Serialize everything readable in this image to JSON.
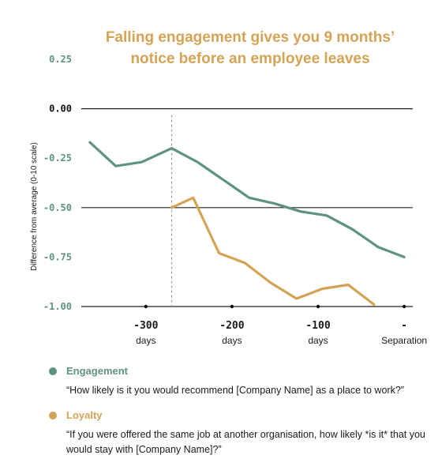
{
  "colors": {
    "engagement": "#5e9283",
    "loyalty": "#d4a355",
    "grid": "#222222",
    "ytick": "#5e9283",
    "separation": "#c47a2e",
    "marker": "#9a9a9a"
  },
  "chart_data": {
    "type": "line",
    "title_lines": [
      "Falling engagement gives you 9 months’",
      "notice before an employee leaves"
    ],
    "ylabel": "Difference from average (0-10 scale)",
    "xlabel": "",
    "xlim": [
      -375,
      10
    ],
    "ylim": [
      -1.0,
      0.25
    ],
    "y_ticks": [
      {
        "value": 0.25,
        "label": "0.25"
      },
      {
        "value": 0.0,
        "label": "0.00"
      },
      {
        "value": -0.25,
        "label": "-0.25"
      },
      {
        "value": -0.5,
        "label": "-0.50"
      },
      {
        "value": -0.75,
        "label": "-0.75"
      },
      {
        "value": -1.0,
        "label": "-1.00"
      }
    ],
    "gridlines": [
      0.0,
      -0.5,
      -1.0
    ],
    "x_ticks": [
      {
        "value": -300,
        "label": "-300",
        "sub": "days"
      },
      {
        "value": -200,
        "label": "-200",
        "sub": "days"
      },
      {
        "value": -100,
        "label": "-100",
        "sub": "days"
      },
      {
        "value": 0,
        "label": "-",
        "sub": "Separation"
      }
    ],
    "marker_line": -270,
    "series": [
      {
        "name": "Engagement",
        "x": [
          -365,
          -335,
          -305,
          -270,
          -240,
          -210,
          -180,
          -150,
          -120,
          -90,
          -60,
          -30,
          0
        ],
        "values": [
          -0.17,
          -0.29,
          -0.27,
          -0.2,
          -0.27,
          -0.36,
          -0.45,
          -0.48,
          -0.52,
          -0.54,
          -0.61,
          -0.7,
          -0.75
        ]
      },
      {
        "name": "Loyalty",
        "x": [
          -270,
          -245,
          -215,
          -185,
          -155,
          -125,
          -95,
          -65,
          -35
        ],
        "values": [
          -0.5,
          -0.45,
          -0.73,
          -0.78,
          -0.88,
          -0.96,
          -0.91,
          -0.89,
          -0.99
        ]
      }
    ]
  },
  "legend": [
    {
      "key": "engagement",
      "name": "Engagement",
      "desc": "“How likely is it you would recommend [Company Name] as a place to work?”"
    },
    {
      "key": "loyalty",
      "name": "Loyalty",
      "desc": "“If you were offered the same job at another organisation, how likely *is it* that you would stay with [Company Name]?”"
    }
  ]
}
